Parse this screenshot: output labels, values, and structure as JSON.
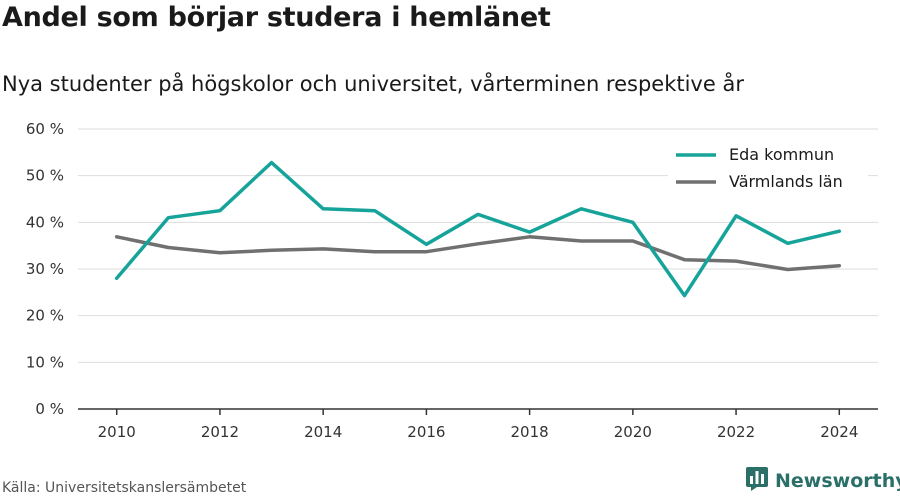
{
  "header": {
    "title": "Andel som börjar studera i hemlänet",
    "subtitle": "Nya studenter på högskolor och universitet, vårterminen respektive år"
  },
  "footer": {
    "source": "Källa: Universitetskanslersämbetet",
    "brand": "Newsworthy",
    "brand_icon": "bar-chart-logo-icon"
  },
  "colors": {
    "eda": "#16a39a",
    "varmland": "#707070",
    "grid": "#dddddd",
    "axis": "#333333",
    "brand": "#2b6f69"
  },
  "chart_data": {
    "type": "line",
    "x": [
      2010,
      2011,
      2012,
      2013,
      2014,
      2015,
      2016,
      2017,
      2018,
      2019,
      2020,
      2021,
      2022,
      2023,
      2024
    ],
    "xticks": [
      "2010",
      "2012",
      "2014",
      "2016",
      "2018",
      "2020",
      "2022",
      "2024"
    ],
    "yticks": [
      "0 %",
      "10 %",
      "20 %",
      "30 %",
      "40 %",
      "50 %",
      "60 %"
    ],
    "ylim": [
      0,
      60
    ],
    "xlim": [
      2009.25,
      2024.75
    ],
    "grid": true,
    "legend_position": "top-right",
    "series": [
      {
        "name": "Eda kommun",
        "values": [
          28.0,
          41.0,
          42.5,
          52.8,
          42.9,
          42.5,
          35.3,
          41.7,
          37.9,
          42.9,
          40.0,
          24.3,
          41.4,
          35.5,
          38.1
        ]
      },
      {
        "name": "Värmlands län",
        "values": [
          36.9,
          34.6,
          33.5,
          34.0,
          34.3,
          33.7,
          33.7,
          35.4,
          36.9,
          36.0,
          36.0,
          32.0,
          31.7,
          29.9,
          30.7
        ]
      }
    ]
  }
}
